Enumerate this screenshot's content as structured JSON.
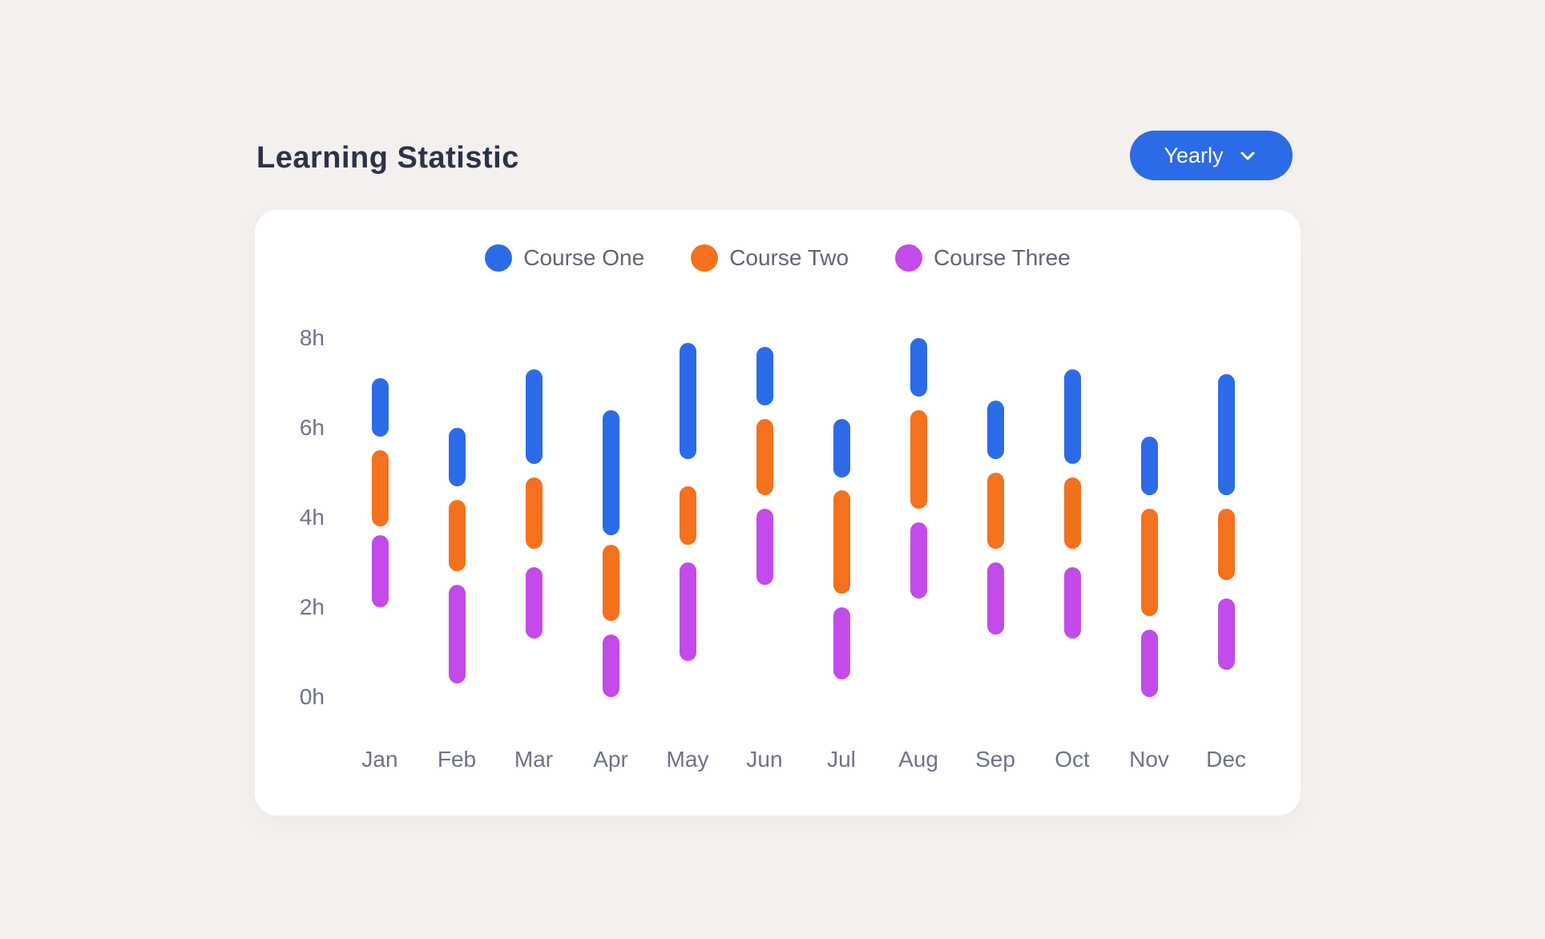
{
  "header": {
    "title": "Learning Statistic",
    "period_button": {
      "label": "Yearly",
      "icon": "chevron-down"
    }
  },
  "chart_data": {
    "type": "bar",
    "subtype": "floating-range-bar",
    "title": "Learning Statistic",
    "xlabel": "",
    "ylabel": "hours",
    "ylim": [
      0,
      8
    ],
    "grid": false,
    "legend_position": "top-center",
    "y_ticks": [
      {
        "value": 8,
        "label": "8h"
      },
      {
        "value": 6,
        "label": "6h"
      },
      {
        "value": 4,
        "label": "4h"
      },
      {
        "value": 2,
        "label": "2h"
      },
      {
        "value": 0,
        "label": "0h"
      }
    ],
    "categories": [
      "Jan",
      "Feb",
      "Mar",
      "Apr",
      "May",
      "Jun",
      "Jul",
      "Aug",
      "Sep",
      "Oct",
      "Nov",
      "Dec"
    ],
    "series": [
      {
        "name": "Course One",
        "color": "#2c6be8",
        "ranges_hours": [
          [
            5.8,
            7.1
          ],
          [
            4.7,
            6.0
          ],
          [
            5.2,
            7.3
          ],
          [
            3.6,
            6.4
          ],
          [
            5.3,
            7.9
          ],
          [
            6.5,
            7.8
          ],
          [
            4.9,
            6.2
          ],
          [
            6.7,
            8.0
          ],
          [
            5.3,
            6.6
          ],
          [
            5.2,
            7.3
          ],
          [
            4.5,
            5.8
          ],
          [
            4.5,
            7.2
          ]
        ]
      },
      {
        "name": "Course Two",
        "color": "#f4711d",
        "ranges_hours": [
          [
            3.8,
            5.5
          ],
          [
            2.8,
            4.4
          ],
          [
            3.3,
            4.9
          ],
          [
            1.7,
            3.4
          ],
          [
            3.4,
            4.7
          ],
          [
            4.5,
            6.2
          ],
          [
            2.3,
            4.6
          ],
          [
            4.2,
            6.4
          ],
          [
            3.3,
            5.0
          ],
          [
            3.3,
            4.9
          ],
          [
            1.8,
            4.2
          ],
          [
            2.6,
            4.2
          ]
        ]
      },
      {
        "name": "Course Three",
        "color": "#c24bea",
        "ranges_hours": [
          [
            2.0,
            3.6
          ],
          [
            0.3,
            2.5
          ],
          [
            1.3,
            2.9
          ],
          [
            0.0,
            1.4
          ],
          [
            0.8,
            3.0
          ],
          [
            2.5,
            4.2
          ],
          [
            0.4,
            2.0
          ],
          [
            2.2,
            3.9
          ],
          [
            1.4,
            3.0
          ],
          [
            1.3,
            2.9
          ],
          [
            0.0,
            1.5
          ],
          [
            0.6,
            2.2
          ]
        ]
      }
    ]
  },
  "colors": {
    "page_bg": "#f4f0ee",
    "card_bg": "#ffffff",
    "title": "#2e3247",
    "axis_label": "#6e7287",
    "legend_label": "#5f6574",
    "button_bg": "#2c6be8",
    "button_text": "#ffffff"
  }
}
